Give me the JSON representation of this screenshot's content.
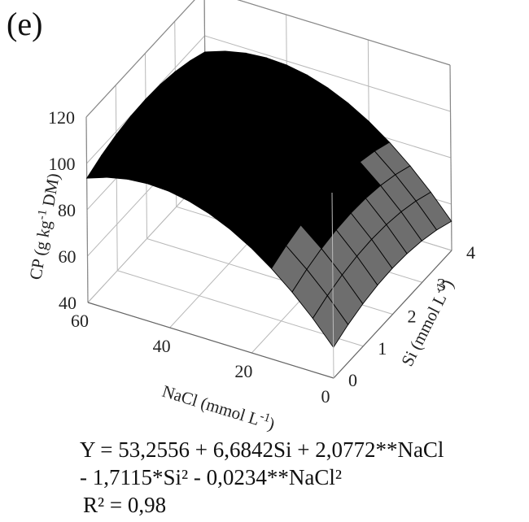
{
  "panel_label": "(e)",
  "chart_data": {
    "type": "surface3d",
    "title": "",
    "zlabel": "CP (g kg-1 DM)",
    "x_axis": {
      "label": "NaCl (mmol L-1)",
      "ticks": [
        "0",
        "20",
        "40",
        "60"
      ],
      "range": [
        0,
        60
      ]
    },
    "y_axis": {
      "label": "Si (mmol L-1)",
      "ticks": [
        "0",
        "1",
        "2",
        "3",
        "4"
      ],
      "range": [
        0,
        4
      ]
    },
    "z_axis": {
      "ticks": [
        "40",
        "60",
        "80",
        "100",
        "120"
      ],
      "range": [
        40,
        120
      ]
    },
    "surface_model": {
      "intercept": 53.2556,
      "si": 6.6842,
      "nacl": 2.0772,
      "si2": -1.7115,
      "nacl2": -0.0234
    },
    "surface_colors": {
      "high": "#000000",
      "mid": "#5a5a5a",
      "low": "#6e6e6e",
      "edge": "#000000"
    }
  },
  "equation": {
    "line1": "Y = 53,2556 + 6,6842Si + 2,0772**NaCl",
    "line2": "- 1,7115*Si² - 0,0234**NaCl²",
    "line3": "R² = 0,98"
  }
}
